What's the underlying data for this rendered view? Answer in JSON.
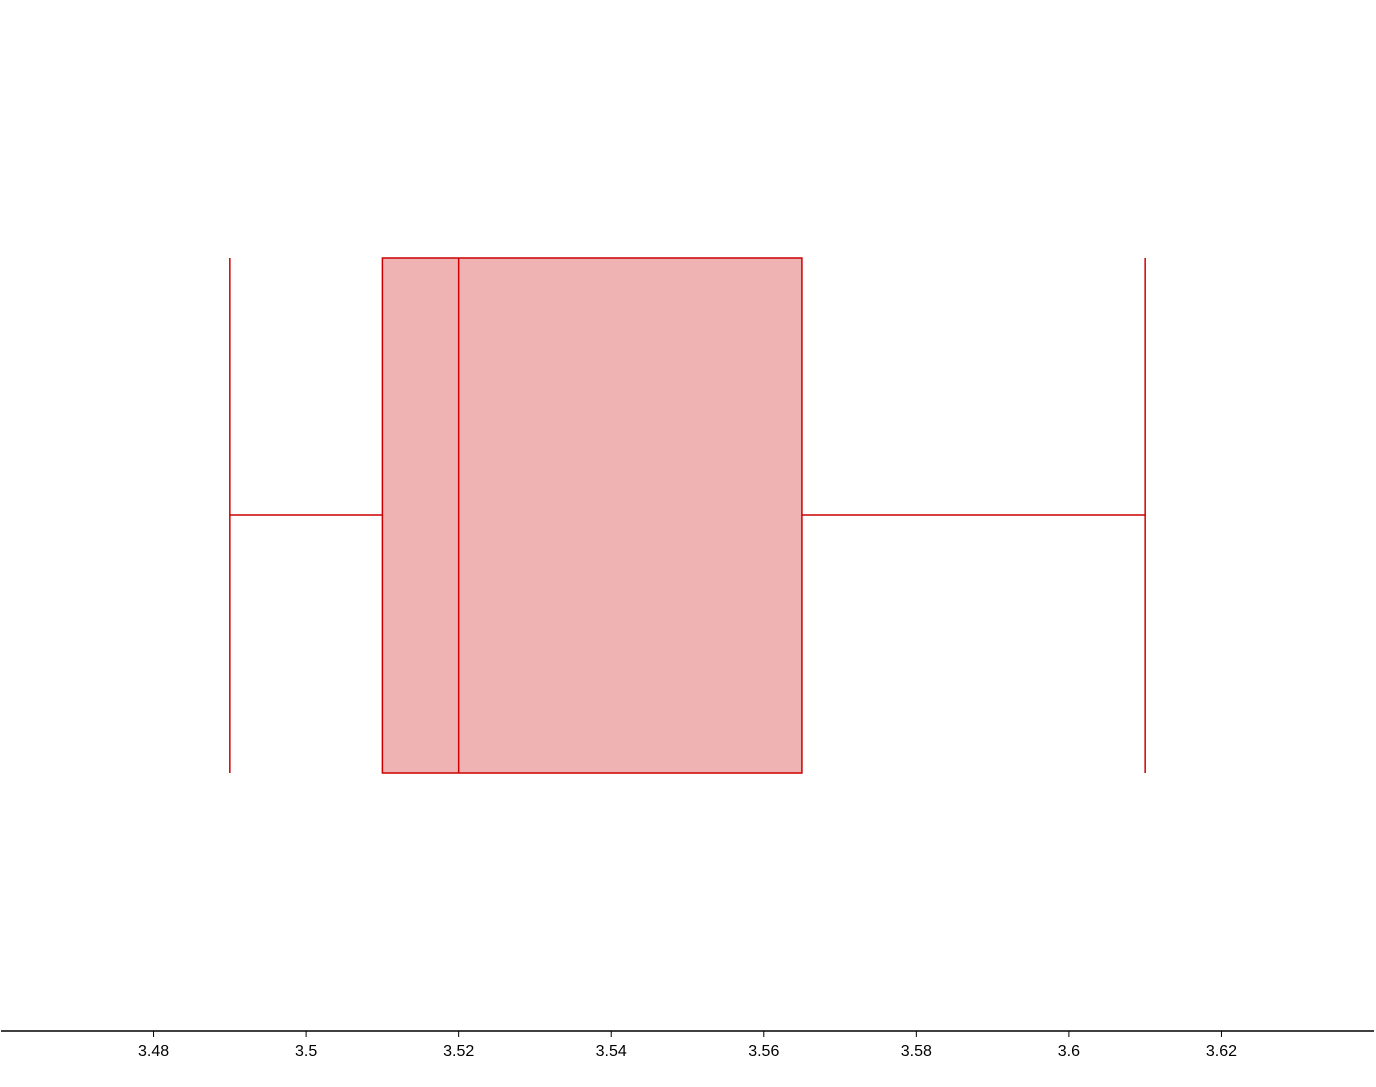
{
  "chart_data": {
    "type": "boxplot",
    "orientation": "horizontal",
    "title": "",
    "xlabel": "",
    "ylabel": "",
    "grid": false,
    "xlim": [
      3.46,
      3.64
    ],
    "x_ticks": [
      3.48,
      3.5,
      3.52,
      3.54,
      3.56,
      3.58,
      3.6,
      3.62
    ],
    "tick_labels": [
      "3.48",
      "3.5",
      "3.52",
      "3.54",
      "3.56",
      "3.58",
      "3.6",
      "3.62"
    ],
    "series": [
      {
        "min": 3.49,
        "q1": 3.51,
        "median": 3.52,
        "q3": 3.565,
        "max": 3.61
      }
    ],
    "colors": {
      "stroke": "#cc0000",
      "fill": "#efb3b3",
      "axis": "#000000"
    }
  }
}
